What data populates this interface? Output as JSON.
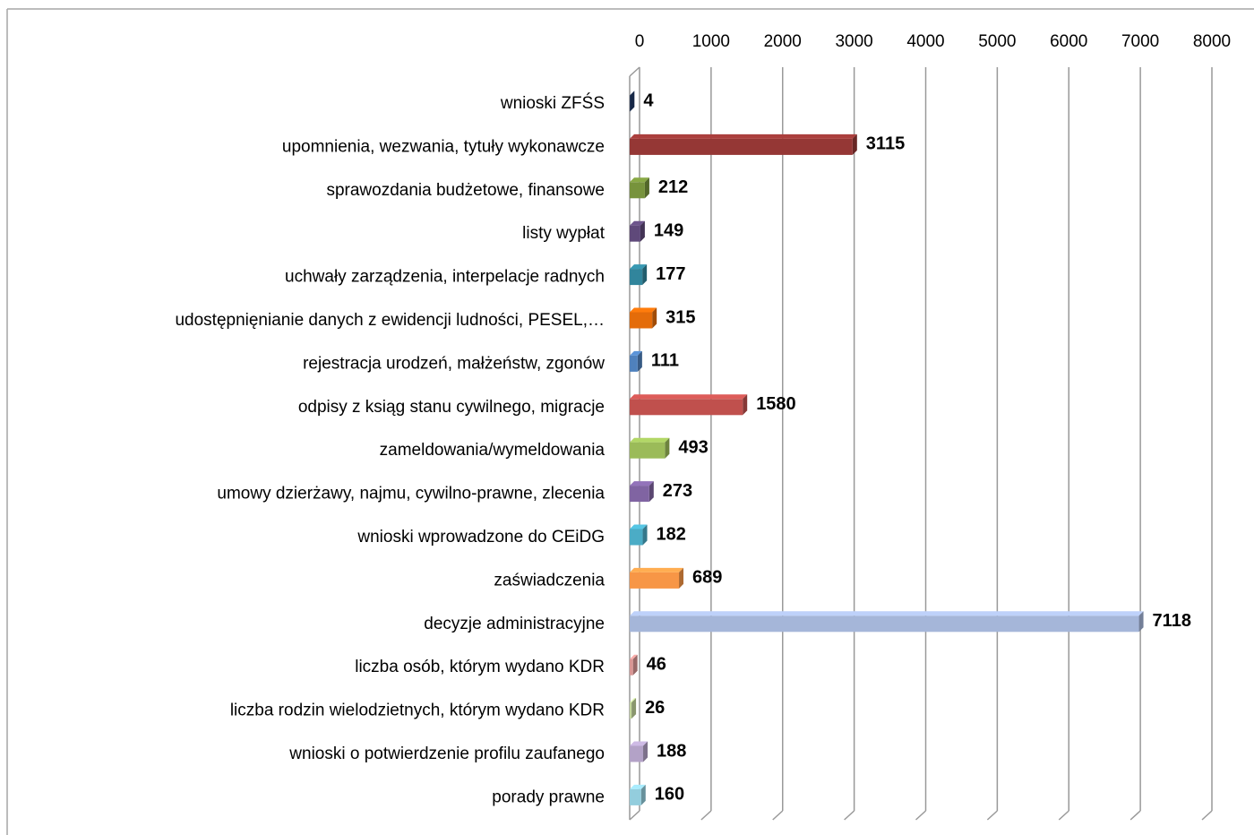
{
  "chart_data": {
    "type": "bar3d_horizontal",
    "categories": [
      "wnioski ZFŚS",
      "upomnienia, wezwania, tytuły wykonawcze",
      "sprawozdania budżetowe, finansowe",
      "listy wypłat",
      "uchwały zarządzenia, interpelacje radnych",
      "udostępnięnianie danych z ewidencji ludności, PESEL,…",
      "rejestracja urodzeń, małżeństw, zgonów",
      "odpisy z ksiąg stanu cywilnego, migracje",
      "zameldowania/wymeldowania",
      "umowy dzierżawy, najmu, cywilno-prawne, zlecenia",
      "wnioski wprowadzone do CEiDG",
      "zaświadczenia",
      "decyzje administracyjne",
      "liczba osób, którym wydano KDR",
      "liczba rodzin wielodzietnych, którym wydano KDR",
      "wnioski o potwierdzenie profilu zaufanego",
      "porady prawne"
    ],
    "values": [
      4,
      3115,
      212,
      149,
      177,
      315,
      111,
      1580,
      493,
      273,
      182,
      689,
      7118,
      46,
      26,
      188,
      160
    ],
    "colors": [
      "#1f3864",
      "#953735",
      "#77933c",
      "#5f497a",
      "#31859c",
      "#e46c0a",
      "#4f81bd",
      "#c0504d",
      "#9bbb59",
      "#8064a2",
      "#4bacc6",
      "#f79646",
      "#a5b6d9",
      "#d99694",
      "#c3d69b",
      "#b3a2c7",
      "#93cddd"
    ],
    "xlim": [
      0,
      8000
    ],
    "xticks": [
      0,
      1000,
      2000,
      3000,
      4000,
      5000,
      6000,
      7000,
      8000
    ],
    "grid": true
  }
}
